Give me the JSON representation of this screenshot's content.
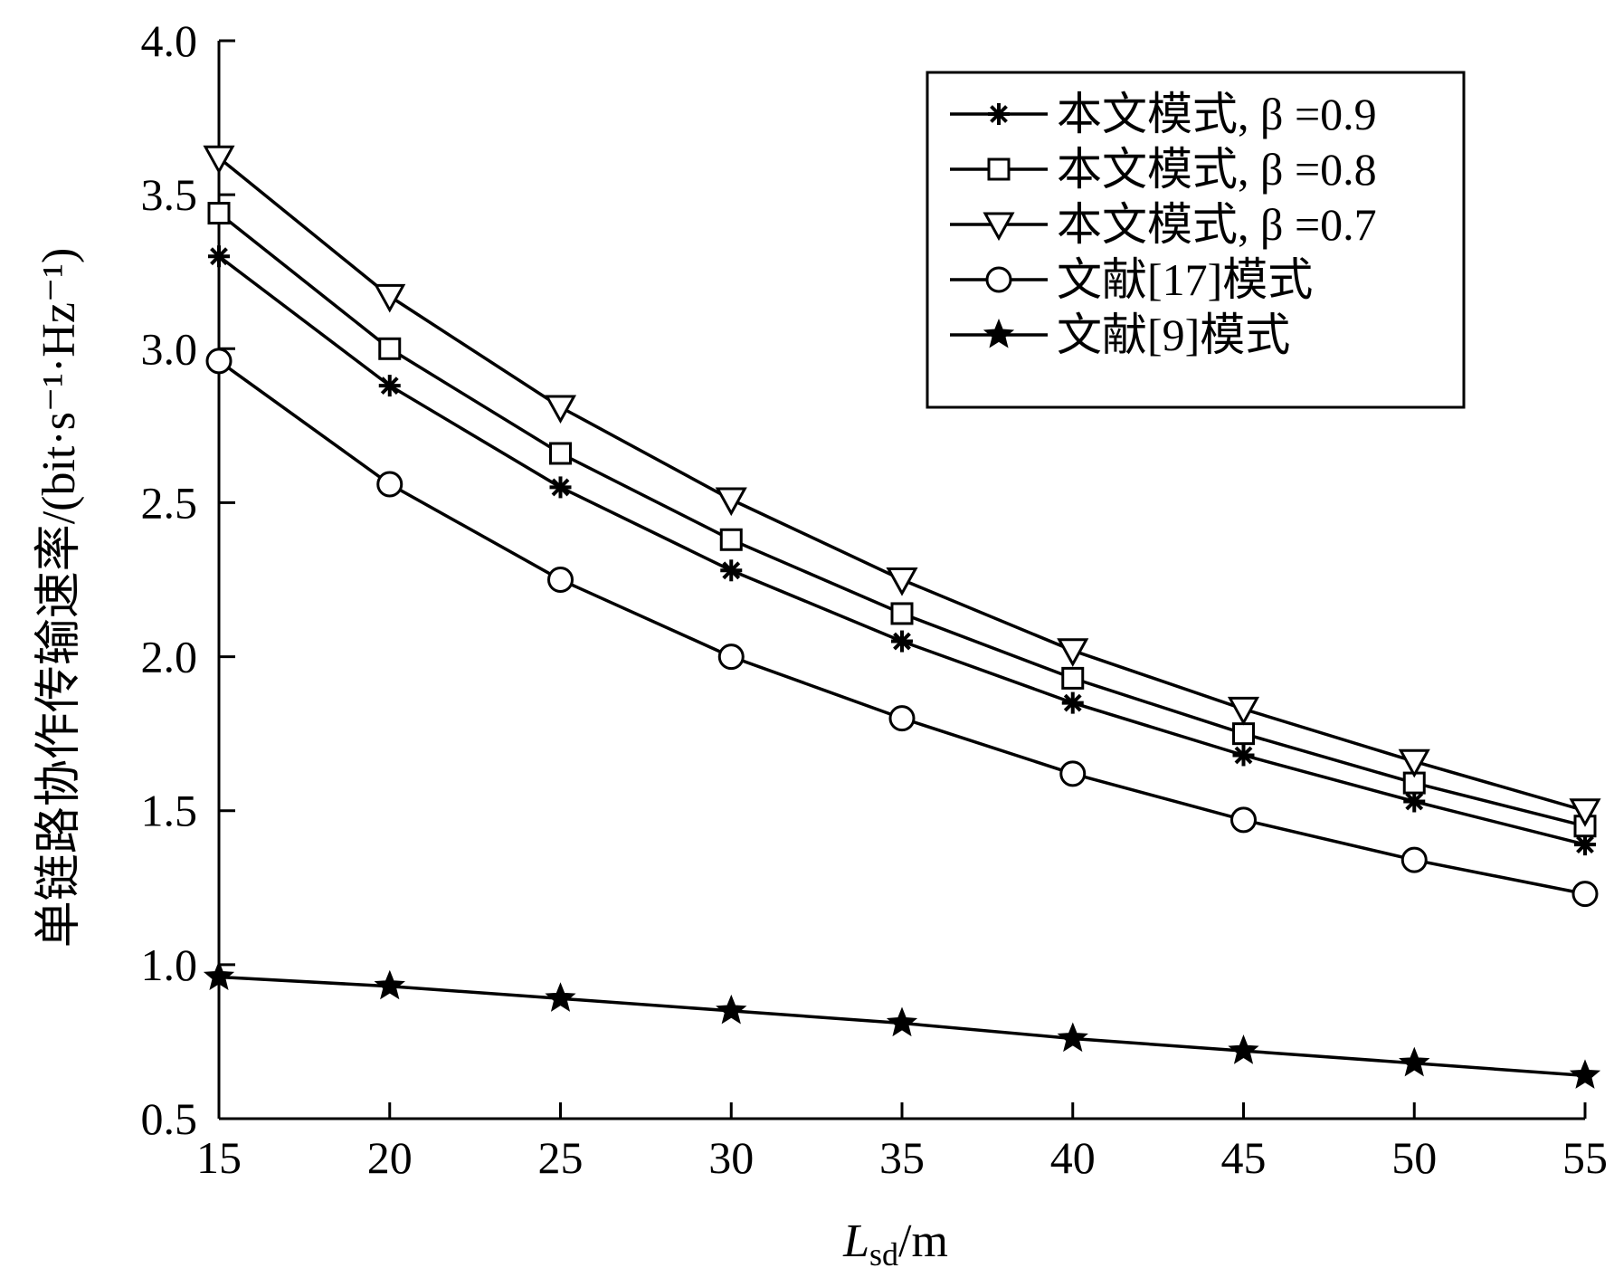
{
  "chart_data": {
    "type": "line",
    "x": [
      15,
      20,
      25,
      30,
      35,
      40,
      45,
      50,
      55
    ],
    "xlim": [
      15,
      55
    ],
    "ylim": [
      0.5,
      4.0
    ],
    "xticks": [
      "15",
      "20",
      "25",
      "30",
      "35",
      "40",
      "45",
      "50",
      "55"
    ],
    "yticks": [
      "0.5",
      "1.0",
      "1.5",
      "2.0",
      "2.5",
      "3.0",
      "3.5",
      "4.0"
    ],
    "xlabel": {
      "main": "L",
      "sub": "sd",
      "rest": "/m"
    },
    "ylabel": "单链路协作传输速率/(bit·s⁻¹·Hz⁻¹)",
    "grid": false,
    "legend_position": "top-right",
    "series": [
      {
        "name": "本文模式, β =0.9",
        "marker": "asterisk",
        "values": [
          3.3,
          2.88,
          2.55,
          2.28,
          2.05,
          1.85,
          1.68,
          1.53,
          1.39
        ]
      },
      {
        "name": "本文模式, β =0.8",
        "marker": "square",
        "values": [
          3.44,
          3.0,
          2.66,
          2.38,
          2.14,
          1.93,
          1.75,
          1.59,
          1.45
        ]
      },
      {
        "name": "本文模式, β =0.7",
        "marker": "triangle-down",
        "values": [
          3.62,
          3.17,
          2.81,
          2.51,
          2.25,
          2.02,
          1.83,
          1.66,
          1.5
        ]
      },
      {
        "name": "文献[17]模式",
        "marker": "circle",
        "values": [
          2.96,
          2.56,
          2.25,
          2.0,
          1.8,
          1.62,
          1.47,
          1.34,
          1.23
        ]
      },
      {
        "name": "文献[9]模式",
        "marker": "star",
        "values": [
          0.96,
          0.93,
          0.89,
          0.85,
          0.81,
          0.76,
          0.72,
          0.68,
          0.64
        ]
      }
    ]
  }
}
